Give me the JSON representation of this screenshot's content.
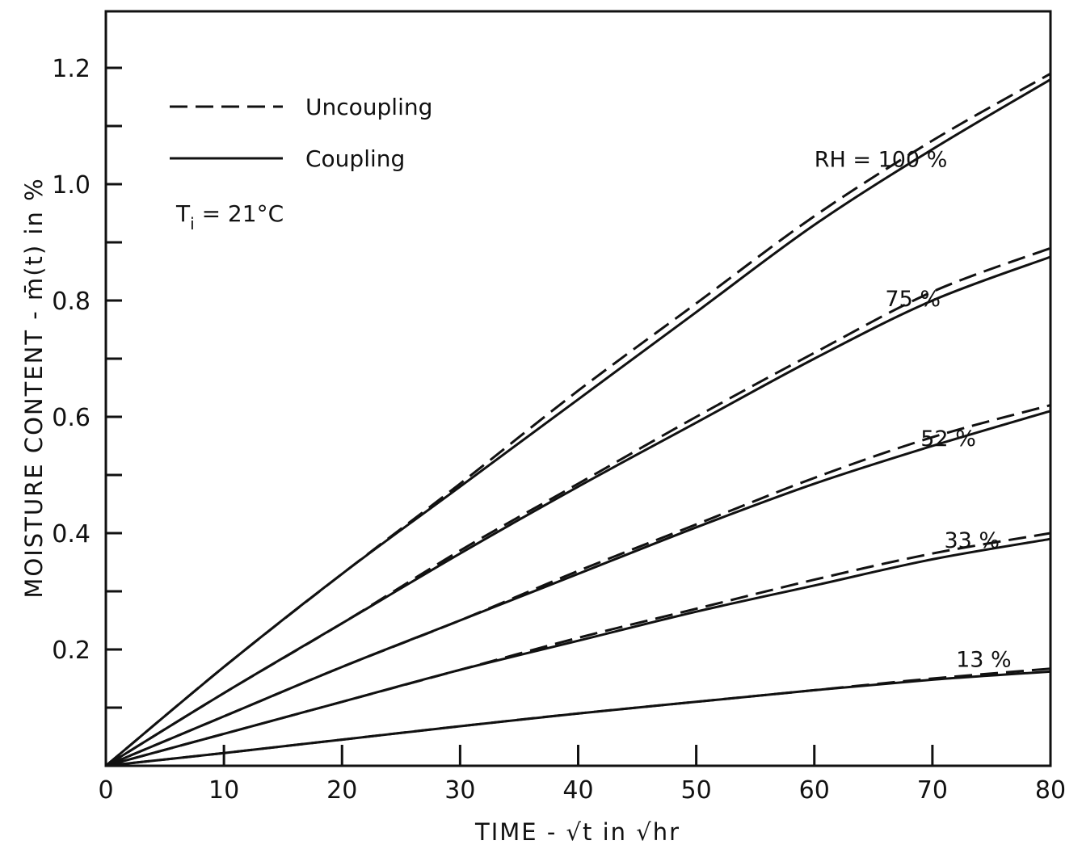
{
  "chart_data": {
    "type": "line",
    "title": "",
    "xlabel": "TIME - √t in √hr",
    "ylabel": "MOISTURE CONTENT - m̄(t) in %",
    "xlim": [
      0,
      80
    ],
    "ylim": [
      0,
      1.2
    ],
    "x_ticks": [
      0,
      10,
      20,
      30,
      40,
      50,
      60,
      70,
      80
    ],
    "x_tick_labels": [
      "0",
      "10",
      "20",
      "30",
      "40",
      "50",
      "60",
      "70",
      "80"
    ],
    "y_ticks": [
      0.2,
      0.4,
      0.6,
      0.8,
      1.0,
      1.2
    ],
    "y_tick_labels": [
      "0.2",
      "0.4",
      "0.6",
      "0.8",
      "1.0",
      "1.2"
    ],
    "grid": false,
    "legend_position": "top-left",
    "legend": [
      {
        "label": "Uncoupling",
        "style": "dashed"
      },
      {
        "label": "Coupling",
        "style": "solid"
      }
    ],
    "annotation": "T_i = 21°C",
    "x": [
      0,
      10,
      20,
      30,
      40,
      50,
      60,
      70,
      80
    ],
    "series": [
      {
        "label": "RH = 100 %",
        "coupling": [
          0,
          0.17,
          0.33,
          0.48,
          0.63,
          0.78,
          0.93,
          1.06,
          1.18
        ],
        "uncoupling": [
          0,
          0.17,
          0.33,
          0.485,
          0.645,
          0.795,
          0.945,
          1.075,
          1.19
        ]
      },
      {
        "label": "75 %",
        "coupling": [
          0,
          0.125,
          0.245,
          0.365,
          0.48,
          0.59,
          0.7,
          0.8,
          0.875
        ],
        "uncoupling": [
          0,
          0.125,
          0.245,
          0.37,
          0.485,
          0.6,
          0.71,
          0.815,
          0.89
        ]
      },
      {
        "label": "52 %",
        "coupling": [
          0,
          0.085,
          0.17,
          0.25,
          0.33,
          0.41,
          0.485,
          0.55,
          0.61
        ],
        "uncoupling": [
          0,
          0.085,
          0.17,
          0.25,
          0.335,
          0.415,
          0.495,
          0.565,
          0.62
        ]
      },
      {
        "label": "33 %",
        "coupling": [
          0,
          0.055,
          0.11,
          0.165,
          0.215,
          0.265,
          0.31,
          0.355,
          0.39
        ],
        "uncoupling": [
          0,
          0.055,
          0.11,
          0.165,
          0.22,
          0.27,
          0.32,
          0.365,
          0.4
        ]
      },
      {
        "label": "13 %",
        "coupling": [
          0,
          0.022,
          0.045,
          0.068,
          0.09,
          0.11,
          0.13,
          0.148,
          0.162
        ],
        "uncoupling": [
          0,
          0.022,
          0.045,
          0.068,
          0.09,
          0.11,
          0.13,
          0.15,
          0.167
        ]
      }
    ],
    "label_anchors": [
      {
        "x": 60,
        "y": 1.03
      },
      {
        "x": 66,
        "y": 0.79
      },
      {
        "x": 69,
        "y": 0.55
      },
      {
        "x": 71,
        "y": 0.375
      },
      {
        "x": 72,
        "y": 0.17
      }
    ]
  }
}
